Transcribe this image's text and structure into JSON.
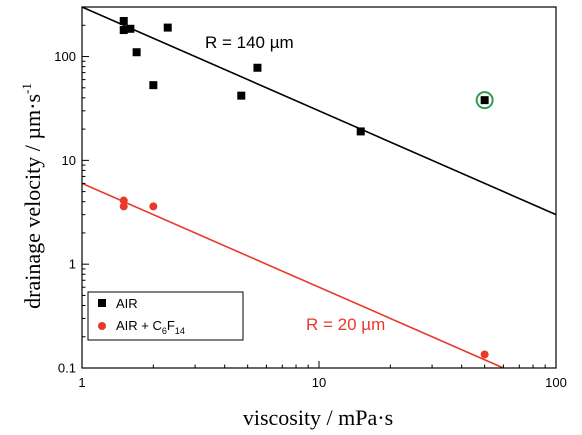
{
  "chart_data": {
    "type": "scatter",
    "xscale": "log",
    "yscale": "log",
    "xlim": [
      1,
      100
    ],
    "ylim": [
      0.1,
      300
    ],
    "xlabel": "viscosity / mPa·s",
    "ylabel_main": "drainage velocity / µm·s",
    "ylabel_sup": "-1",
    "x_ticks": [
      {
        "value": 1,
        "label": "1"
      },
      {
        "value": 10,
        "label": "10"
      },
      {
        "value": 100,
        "label": "100"
      }
    ],
    "y_ticks": [
      {
        "value": 0.1,
        "label": "0.1"
      },
      {
        "value": 1,
        "label": "1"
      },
      {
        "value": 10,
        "label": "10"
      },
      {
        "value": 100,
        "label": "100"
      }
    ],
    "series": [
      {
        "name": "AIR",
        "color": "#000000",
        "marker": "square",
        "points": [
          [
            1.5,
            220
          ],
          [
            1.5,
            180
          ],
          [
            1.6,
            185
          ],
          [
            1.7,
            110
          ],
          [
            2.0,
            53
          ],
          [
            2.3,
            190
          ],
          [
            4.7,
            42
          ],
          [
            5.5,
            78
          ],
          [
            15,
            19
          ],
          [
            50,
            38
          ]
        ],
        "fit": {
          "x": [
            1,
            100
          ],
          "y": [
            300,
            3
          ],
          "label": "R = 140 µm"
        }
      },
      {
        "name_main": "AIR + C",
        "name_sub1": "6",
        "name_mid": "F",
        "name_sub2": "14",
        "color": "#e8392b",
        "marker": "circle",
        "points": [
          [
            1.5,
            4.1
          ],
          [
            1.5,
            3.6
          ],
          [
            2.0,
            3.6
          ],
          [
            50,
            0.135
          ]
        ],
        "fit": {
          "x": [
            1,
            60
          ],
          "y": [
            6,
            0.1
          ],
          "label": "R = 20 µm"
        }
      }
    ],
    "highlight": {
      "x": 50,
      "y": 38,
      "color": "#2e9e4a"
    },
    "legend": {
      "position": "bottom-left"
    }
  }
}
